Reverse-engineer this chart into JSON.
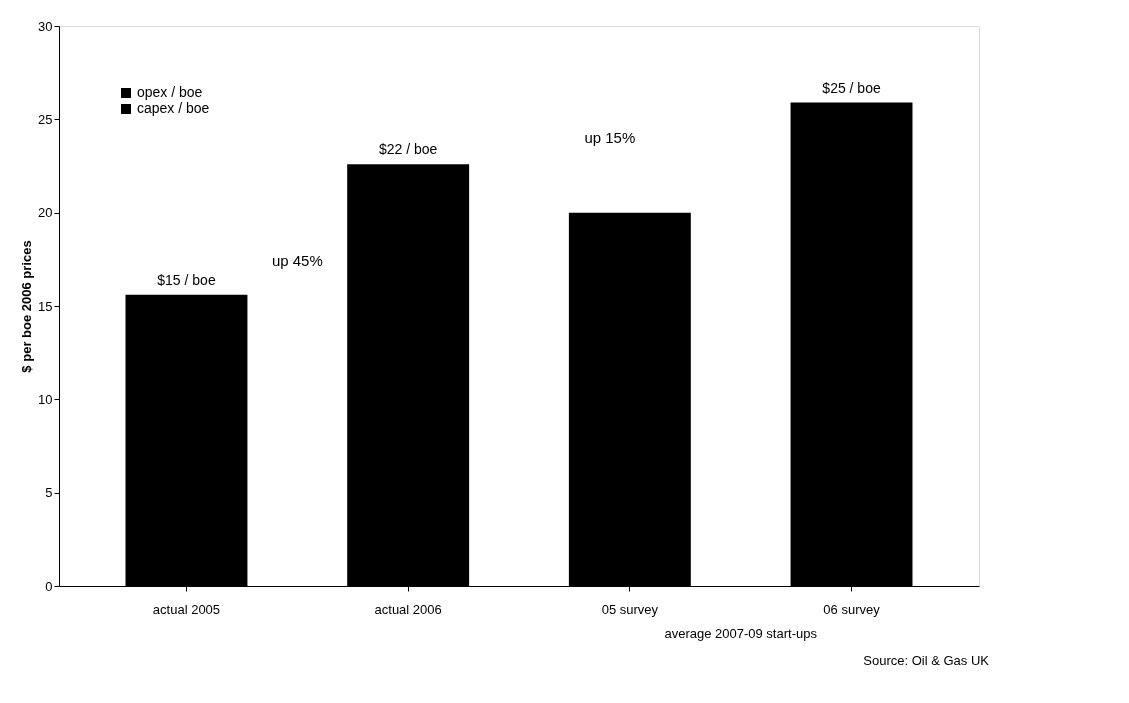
{
  "chart_data": {
    "type": "bar",
    "ylabel": "$ per boe 2006 prices",
    "categories": [
      "actual 2005",
      "actual 2006",
      "05 survey",
      "06 survey"
    ],
    "series": [
      {
        "name": "opex / boe",
        "color": "#000000",
        "values": [
          15.6,
          22.6,
          20.0,
          25.9
        ]
      },
      {
        "name": "capex / boe",
        "color": "#000000",
        "values": [
          null,
          null,
          null,
          null
        ]
      }
    ],
    "ylim": [
      0,
      30
    ],
    "yticks": [
      0,
      5,
      10,
      15,
      20,
      25,
      30
    ],
    "grid": false,
    "legend": "top left",
    "annotations": [
      {
        "text": "$15 / boe",
        "x": "actual 2005",
        "y": 15.6
      },
      {
        "text": "$22 / boe",
        "x": "actual 2006",
        "y": 22.6
      },
      {
        "text": "$25 / boe",
        "x": "06 survey",
        "y": 25.9
      },
      "up 45%",
      "up 15%",
      "average 2007-09 start-ups",
      "Source: Oil & Gas UK"
    ]
  }
}
